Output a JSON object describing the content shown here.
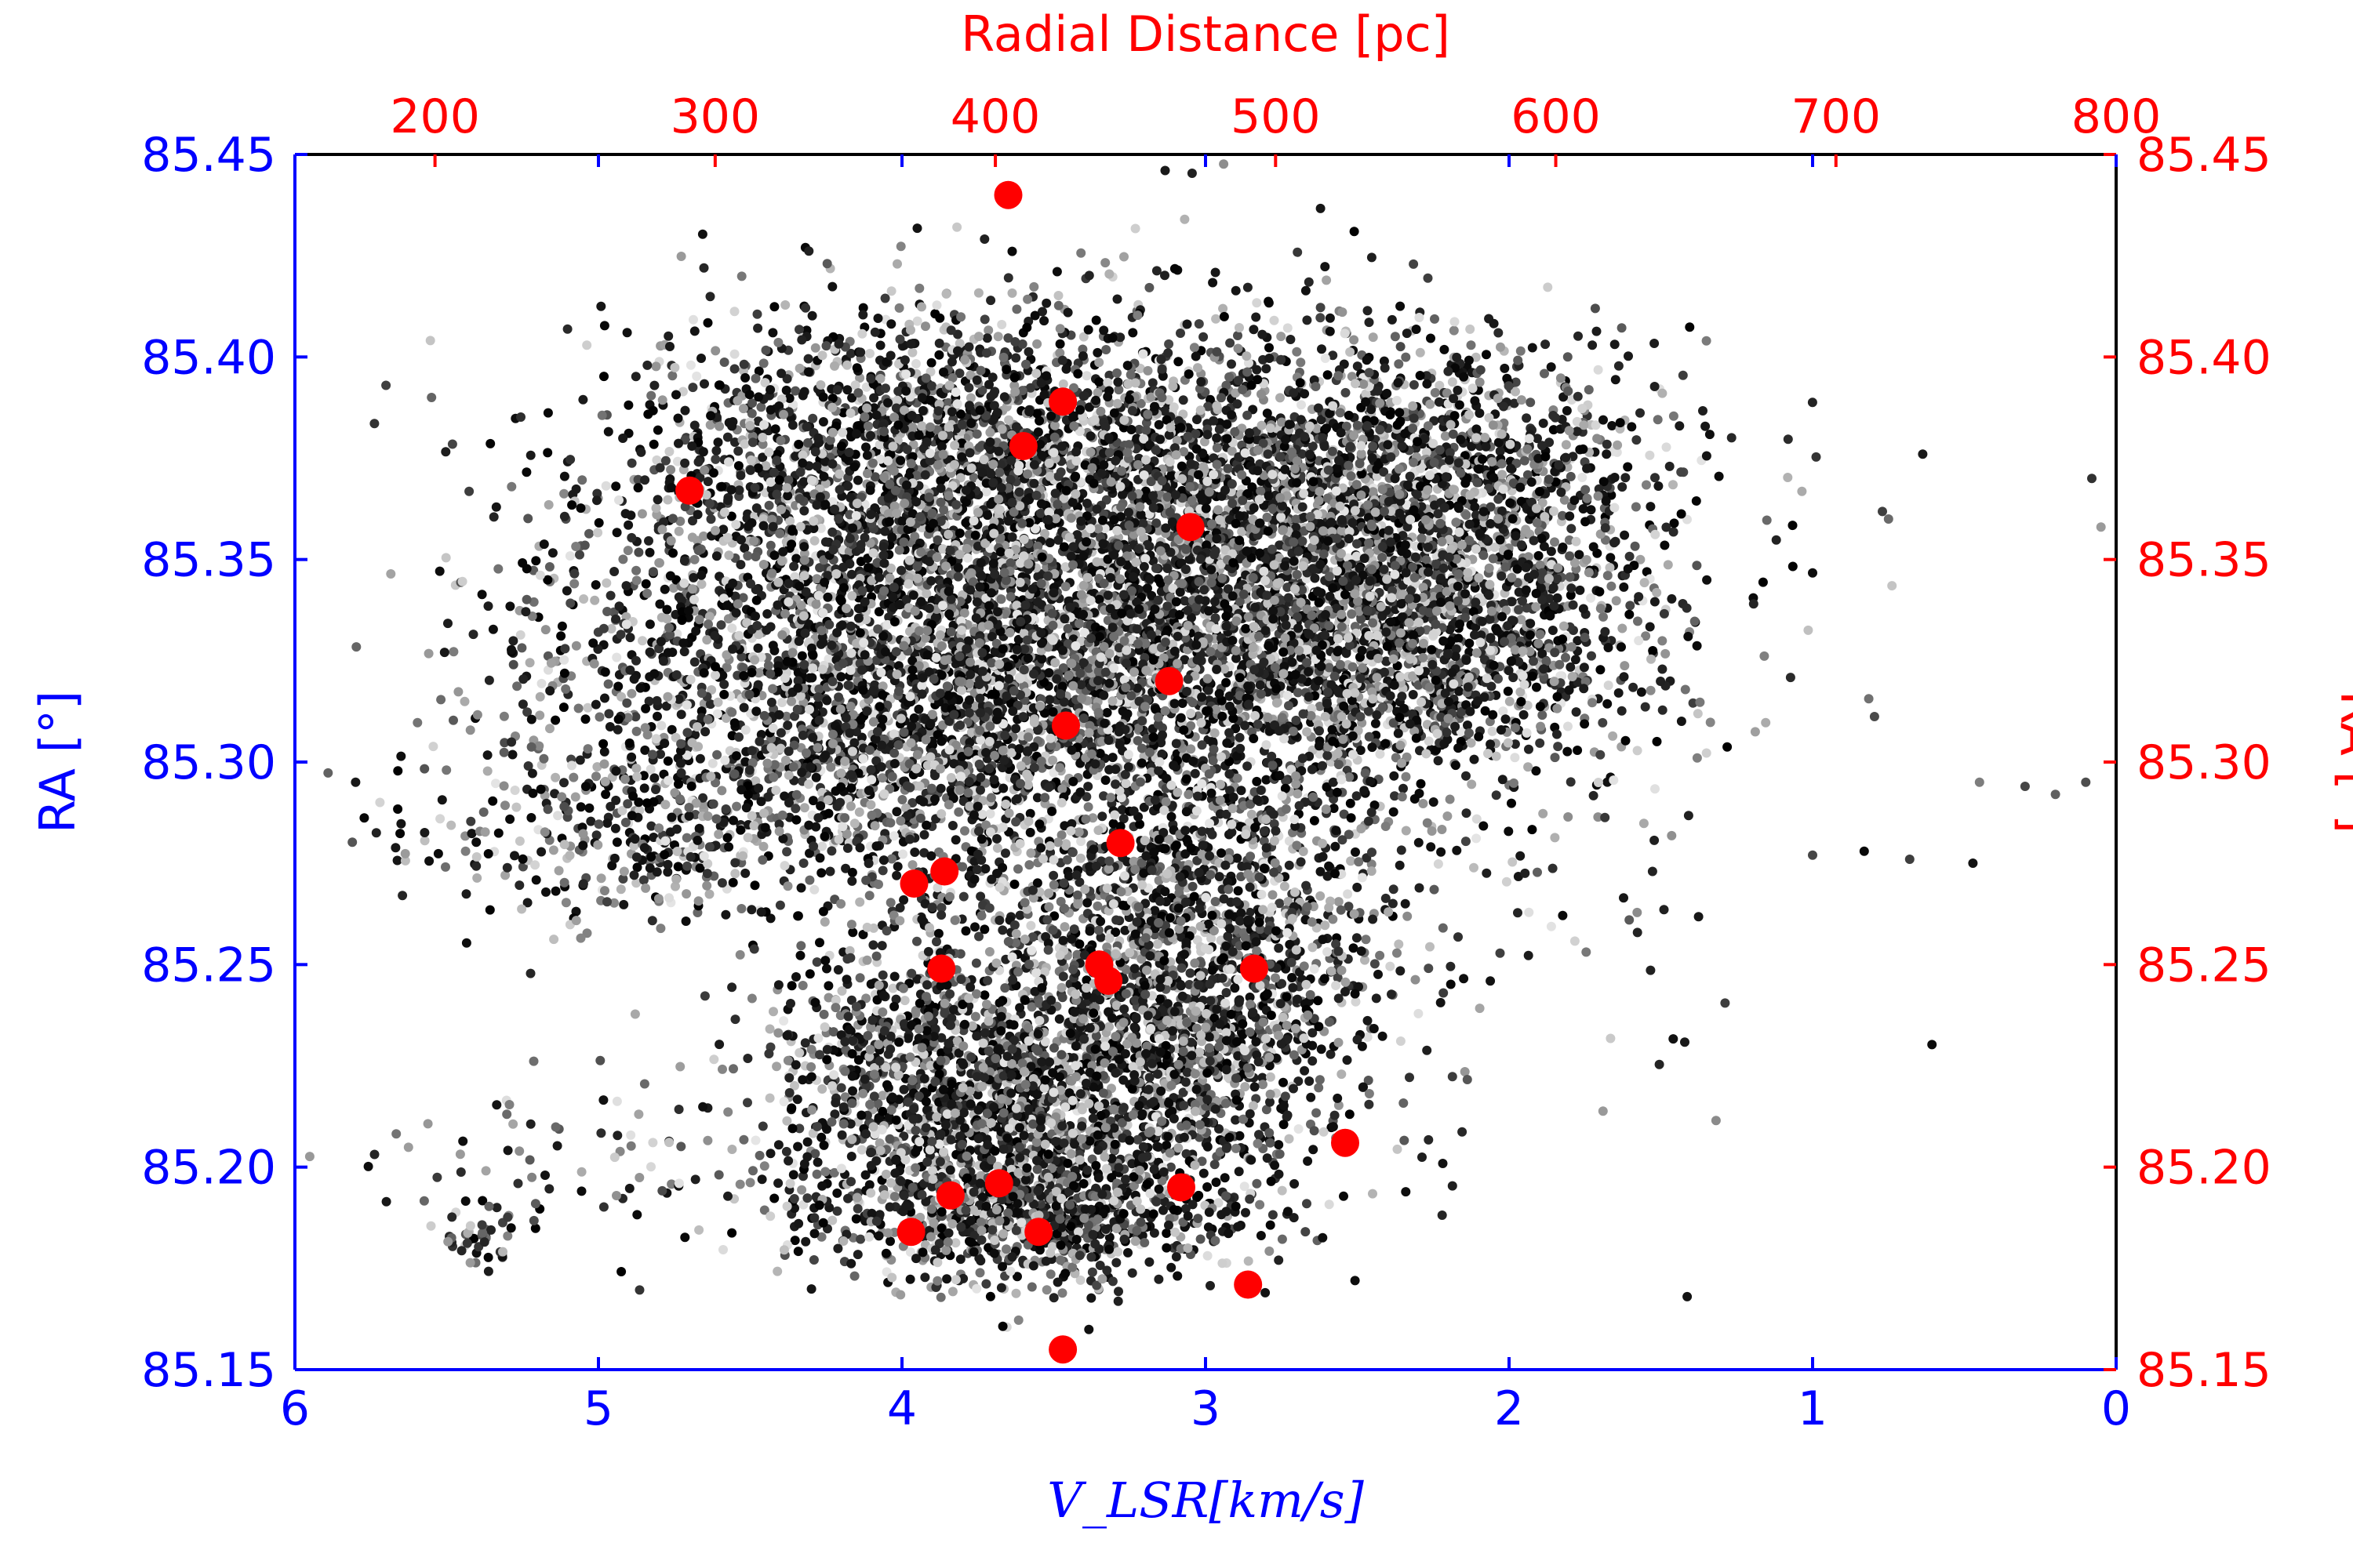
{
  "chart_data": {
    "type": "scatter",
    "title": "",
    "xlabel": "V_LSR[km/s]",
    "ylabel": "RA [°]",
    "x2label": "Radial Distance [pc]",
    "y2label": "RA [°]",
    "xlim": [
      6,
      0
    ],
    "ylim": [
      85.15,
      85.45
    ],
    "x2lim": [
      150,
      800
    ],
    "x_reversed": true,
    "grid": false,
    "legend": "none",
    "x_ticks": [
      "6",
      "5",
      "4",
      "3",
      "2",
      "1",
      "0"
    ],
    "y_ticks": [
      "85.15",
      "85.20",
      "85.25",
      "85.30",
      "85.35",
      "85.40",
      "85.45"
    ],
    "x2_ticks": [
      "200",
      "300",
      "400",
      "500",
      "600",
      "700",
      "800"
    ],
    "y2_ticks": [
      "85.15",
      "85.20",
      "85.25",
      "85.30",
      "85.35",
      "85.40",
      "85.45"
    ],
    "colors": {
      "primary_axis": "#0000ff",
      "secondary_axis": "#ff0000",
      "highlight_points": "#ff0000",
      "cloud_points": "grayscale"
    },
    "series": [
      {
        "kind": "highlight",
        "color": "#ff0000",
        "points": [
          [
            3.65,
            85.44
          ],
          [
            3.47,
            85.389
          ],
          [
            3.6,
            85.378
          ],
          [
            4.7,
            85.367
          ],
          [
            3.05,
            85.358
          ],
          [
            3.12,
            85.32
          ],
          [
            3.46,
            85.309
          ],
          [
            3.28,
            85.28
          ],
          [
            3.96,
            85.27
          ],
          [
            3.86,
            85.273
          ],
          [
            3.87,
            85.249
          ],
          [
            3.35,
            85.25
          ],
          [
            3.32,
            85.246
          ],
          [
            2.84,
            85.249
          ],
          [
            2.54,
            85.206
          ],
          [
            3.84,
            85.193
          ],
          [
            3.68,
            85.196
          ],
          [
            3.08,
            85.195
          ],
          [
            3.97,
            85.184
          ],
          [
            3.55,
            85.184
          ],
          [
            2.86,
            85.171
          ],
          [
            3.47,
            85.155
          ]
        ]
      },
      {
        "kind": "cloud",
        "color": "grayscale",
        "regions": [
          {
            "cx": 3.9,
            "cy": 85.38,
            "sx": 0.55,
            "sy": 0.018,
            "n": 1400
          },
          {
            "cx": 3.0,
            "cy": 85.365,
            "sx": 0.55,
            "sy": 0.022,
            "n": 1600
          },
          {
            "cx": 2.2,
            "cy": 85.375,
            "sx": 0.35,
            "sy": 0.015,
            "n": 700
          },
          {
            "cx": 2.3,
            "cy": 85.345,
            "sx": 0.4,
            "sy": 0.015,
            "n": 900
          },
          {
            "cx": 4.0,
            "cy": 85.345,
            "sx": 0.55,
            "sy": 0.02,
            "n": 1200
          },
          {
            "cx": 3.2,
            "cy": 85.33,
            "sx": 0.6,
            "sy": 0.02,
            "n": 1400
          },
          {
            "cx": 2.3,
            "cy": 85.32,
            "sx": 0.35,
            "sy": 0.012,
            "n": 600
          },
          {
            "cx": 3.8,
            "cy": 85.315,
            "sx": 0.5,
            "sy": 0.015,
            "n": 800
          },
          {
            "cx": 4.2,
            "cy": 85.295,
            "sx": 0.45,
            "sy": 0.012,
            "n": 500
          },
          {
            "cx": 4.8,
            "cy": 85.33,
            "sx": 0.35,
            "sy": 0.02,
            "n": 300
          },
          {
            "cx": 4.9,
            "cy": 85.28,
            "sx": 0.4,
            "sy": 0.012,
            "n": 300
          },
          {
            "cx": 3.0,
            "cy": 85.27,
            "sx": 0.3,
            "sy": 0.02,
            "n": 700
          },
          {
            "cx": 3.6,
            "cy": 85.26,
            "sx": 0.35,
            "sy": 0.02,
            "n": 500
          },
          {
            "cx": 3.0,
            "cy": 85.235,
            "sx": 0.3,
            "sy": 0.018,
            "n": 700
          },
          {
            "cx": 3.5,
            "cy": 85.215,
            "sx": 0.35,
            "sy": 0.015,
            "n": 1200
          },
          {
            "cx": 4.0,
            "cy": 85.225,
            "sx": 0.25,
            "sy": 0.012,
            "n": 400
          },
          {
            "cx": 3.6,
            "cy": 85.19,
            "sx": 0.35,
            "sy": 0.01,
            "n": 900
          },
          {
            "cx": 5.0,
            "cy": 85.2,
            "sx": 0.4,
            "sy": 0.01,
            "n": 100
          },
          {
            "cx": 5.4,
            "cy": 85.182,
            "sx": 0.05,
            "sy": 0.003,
            "n": 40
          },
          {
            "cx": 3.0,
            "cy": 85.3,
            "sx": 0.8,
            "sy": 0.05,
            "n": 800
          }
        ],
        "outliers": [
          [
            0.75,
            85.36
          ],
          [
            0.05,
            85.358
          ],
          [
            0.3,
            85.294
          ],
          [
            0.2,
            85.292
          ],
          [
            0.1,
            85.295
          ],
          [
            0.45,
            85.295
          ],
          [
            1.0,
            85.277
          ],
          [
            0.83,
            85.278
          ],
          [
            0.68,
            85.276
          ],
          [
            5.7,
            85.393
          ],
          [
            5.55,
            85.39
          ],
          [
            5.8,
            85.295
          ],
          [
            1.35,
            85.404
          ],
          [
            1.38,
            85.301
          ],
          [
            0.08,
            85.37
          ]
        ]
      }
    ]
  }
}
